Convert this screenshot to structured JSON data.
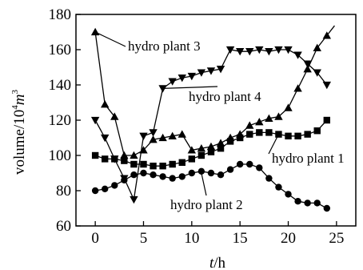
{
  "chart_data": {
    "type": "line",
    "xlabel": "t/h",
    "xlabel_parts": {
      "var": "t",
      "unit": "/h"
    },
    "ylabel": "volume/10^4 m^3",
    "ylabel_parts": {
      "base": "volume/10",
      "exp1": "4",
      "m": "m",
      "exp2": "3"
    },
    "xlim": [
      -2,
      27
    ],
    "ylim": [
      60,
      180
    ],
    "xticks": [
      0,
      5,
      10,
      15,
      20,
      25
    ],
    "yticks": [
      60,
      80,
      100,
      120,
      140,
      160,
      180
    ],
    "grid": false,
    "series": [
      {
        "name": "hydro plant 1",
        "marker": "square",
        "x": [
          0,
          1,
          2,
          3,
          4,
          5,
          6,
          7,
          8,
          9,
          10,
          11,
          12,
          13,
          14,
          15,
          16,
          17,
          18,
          19,
          20,
          21,
          22,
          23,
          24
        ],
        "y": [
          100,
          98,
          98,
          97,
          95,
          95,
          94,
          94,
          95,
          96,
          98,
          100,
          102,
          104,
          108,
          110,
          112,
          113,
          113,
          112,
          111,
          111,
          112,
          114,
          120
        ]
      },
      {
        "name": "hydro plant 2",
        "marker": "circle",
        "x": [
          0,
          1,
          2,
          3,
          4,
          5,
          6,
          7,
          8,
          9,
          10,
          11,
          12,
          13,
          14,
          15,
          16,
          17,
          18,
          19,
          20,
          21,
          22,
          23,
          24
        ],
        "y": [
          80,
          81,
          83,
          86,
          89,
          90,
          89,
          88,
          87,
          88,
          90,
          91,
          90,
          89,
          92,
          95,
          95,
          93,
          87,
          82,
          78,
          74,
          73,
          73,
          70
        ]
      },
      {
        "name": "hydro plant 3",
        "marker": "triangle-up",
        "x": [
          0,
          1,
          2,
          3,
          4,
          5,
          6,
          7,
          8,
          9,
          10,
          11,
          12,
          13,
          14,
          15,
          16,
          17,
          18,
          19,
          20,
          21,
          22,
          23,
          24
        ],
        "y": [
          170,
          129,
          122,
          100,
          100,
          103,
          109,
          110,
          111,
          112,
          103,
          104,
          105,
          107,
          110,
          112,
          117,
          119,
          121,
          122,
          127,
          138,
          149,
          161,
          168
        ]
      },
      {
        "name": "hydro plant 4",
        "marker": "triangle-down",
        "x": [
          0,
          1,
          2,
          3,
          4,
          5,
          6,
          7,
          8,
          9,
          10,
          11,
          12,
          13,
          14,
          15,
          16,
          17,
          18,
          19,
          20,
          21,
          22,
          23,
          24
        ],
        "y": [
          120,
          110,
          98,
          87,
          75,
          111,
          113,
          138,
          142,
          144,
          145,
          147,
          148,
          149,
          160,
          159,
          159,
          160,
          159,
          160,
          160,
          157,
          152,
          147,
          140
        ]
      }
    ],
    "annotations": [
      {
        "text": "hydro plant 3",
        "series": 2
      },
      {
        "text": "hydro plant 4",
        "series": 3
      },
      {
        "text": "hydro plant 1",
        "series": 0
      },
      {
        "text": "hydro plant 2",
        "series": 1
      }
    ]
  }
}
